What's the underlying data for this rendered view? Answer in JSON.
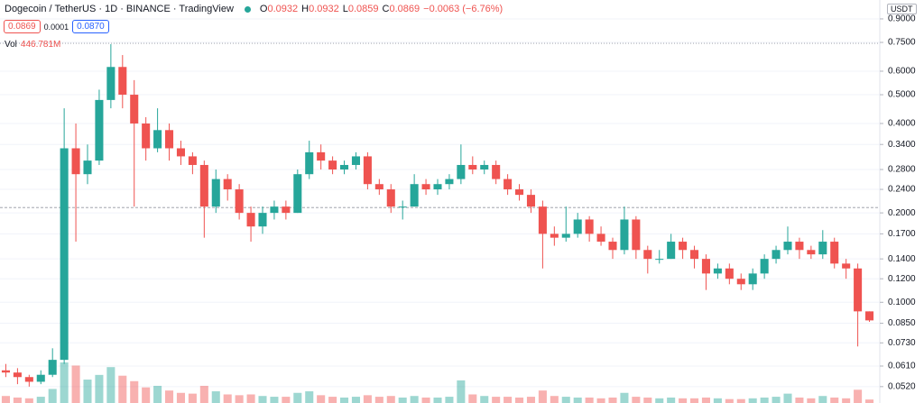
{
  "chart_data": {
    "type": "candlestick",
    "header": {
      "symbol": "Dogecoin / TetherUS · 1D · BINANCE · TradingView",
      "ohlc": [
        {
          "label": "O",
          "value": "0.0932"
        },
        {
          "label": "H",
          "value": "0.0932"
        },
        {
          "label": "L",
          "value": "0.0859"
        },
        {
          "label": "C",
          "value": "0.0869"
        }
      ],
      "change": "−0.0063 (−6.76%)",
      "bid": "0.0869",
      "spread": "0.0001",
      "ask": "0.0870",
      "volume_label": "Vol",
      "volume_value": "446.781M"
    },
    "axis_unit": "USDT",
    "log_scale": true,
    "grid": true,
    "up_color": "#26a69a",
    "down_color": "#ef5350",
    "ylim": [
      0.0458,
      1.042
    ],
    "yticks": [
      {
        "value": 0.9,
        "label": "0.9000"
      },
      {
        "value": 0.75,
        "label": "0.7500"
      },
      {
        "value": 0.6,
        "label": "0.6000"
      },
      {
        "value": 0.5,
        "label": "0.5000"
      },
      {
        "value": 0.4,
        "label": "0.4000"
      },
      {
        "value": 0.34,
        "label": "0.3400"
      },
      {
        "value": 0.28,
        "label": "0.2800"
      },
      {
        "value": 0.24,
        "label": "0.2400"
      },
      {
        "value": 0.2,
        "label": "0.2000"
      },
      {
        "value": 0.17,
        "label": "0.1700"
      },
      {
        "value": 0.14,
        "label": "0.1400"
      },
      {
        "value": 0.12,
        "label": "0.1200"
      },
      {
        "value": 0.1,
        "label": "0.1000"
      },
      {
        "value": 0.085,
        "label": "0.0850"
      },
      {
        "value": 0.073,
        "label": "0.0730"
      },
      {
        "value": 0.061,
        "label": "0.0610"
      },
      {
        "value": 0.052,
        "label": "0.0520"
      }
    ],
    "hlines": [
      0.7447,
      0.2085
    ],
    "open": [
      0.059,
      0.058,
      0.056,
      0.054,
      0.057,
      0.064,
      0.33,
      0.27,
      0.3,
      0.48,
      0.62,
      0.5,
      0.4,
      0.33,
      0.38,
      0.33,
      0.31,
      0.29,
      0.21,
      0.26,
      0.24,
      0.2,
      0.18,
      0.2,
      0.21,
      0.2,
      0.27,
      0.32,
      0.3,
      0.28,
      0.29,
      0.31,
      0.25,
      0.24,
      0.21,
      0.21,
      0.25,
      0.24,
      0.25,
      0.26,
      0.29,
      0.28,
      0.29,
      0.26,
      0.24,
      0.23,
      0.21,
      0.17,
      0.165,
      0.17,
      0.19,
      0.17,
      0.16,
      0.15,
      0.19,
      0.15,
      0.14,
      0.14,
      0.16,
      0.15,
      0.14,
      0.125,
      0.13,
      0.12,
      0.115,
      0.125,
      0.14,
      0.15,
      0.16,
      0.15,
      0.145,
      0.16,
      0.135,
      0.13,
      0.0932
    ],
    "high": [
      0.062,
      0.06,
      0.057,
      0.059,
      0.07,
      0.45,
      0.4,
      0.34,
      0.52,
      0.74,
      0.68,
      0.56,
      0.42,
      0.45,
      0.4,
      0.35,
      0.32,
      0.3,
      0.28,
      0.27,
      0.25,
      0.21,
      0.21,
      0.22,
      0.22,
      0.28,
      0.35,
      0.34,
      0.31,
      0.3,
      0.32,
      0.32,
      0.26,
      0.25,
      0.22,
      0.27,
      0.26,
      0.26,
      0.27,
      0.34,
      0.31,
      0.3,
      0.3,
      0.27,
      0.25,
      0.24,
      0.22,
      0.18,
      0.21,
      0.2,
      0.195,
      0.18,
      0.165,
      0.21,
      0.195,
      0.155,
      0.15,
      0.17,
      0.165,
      0.155,
      0.145,
      0.135,
      0.135,
      0.125,
      0.13,
      0.145,
      0.155,
      0.18,
      0.165,
      0.155,
      0.175,
      0.165,
      0.14,
      0.135,
      0.0932
    ],
    "low": [
      0.056,
      0.053,
      0.052,
      0.053,
      0.056,
      0.062,
      0.16,
      0.25,
      0.29,
      0.45,
      0.45,
      0.21,
      0.3,
      0.32,
      0.3,
      0.29,
      0.27,
      0.165,
      0.2,
      0.22,
      0.19,
      0.16,
      0.17,
      0.19,
      0.19,
      0.2,
      0.26,
      0.28,
      0.27,
      0.27,
      0.28,
      0.24,
      0.23,
      0.2,
      0.19,
      0.21,
      0.23,
      0.23,
      0.24,
      0.25,
      0.27,
      0.27,
      0.25,
      0.23,
      0.22,
      0.2,
      0.13,
      0.155,
      0.16,
      0.165,
      0.16,
      0.155,
      0.14,
      0.145,
      0.14,
      0.125,
      0.135,
      0.14,
      0.14,
      0.13,
      0.11,
      0.12,
      0.115,
      0.11,
      0.11,
      0.12,
      0.135,
      0.145,
      0.14,
      0.14,
      0.14,
      0.13,
      0.12,
      0.071,
      0.0859
    ],
    "close": [
      0.058,
      0.056,
      0.054,
      0.057,
      0.064,
      0.33,
      0.27,
      0.3,
      0.48,
      0.62,
      0.5,
      0.4,
      0.33,
      0.38,
      0.33,
      0.31,
      0.29,
      0.21,
      0.26,
      0.24,
      0.2,
      0.18,
      0.2,
      0.21,
      0.2,
      0.27,
      0.32,
      0.3,
      0.28,
      0.29,
      0.31,
      0.25,
      0.24,
      0.21,
      0.21,
      0.25,
      0.24,
      0.25,
      0.26,
      0.29,
      0.28,
      0.29,
      0.26,
      0.24,
      0.23,
      0.21,
      0.17,
      0.165,
      0.17,
      0.19,
      0.17,
      0.16,
      0.15,
      0.19,
      0.15,
      0.14,
      0.14,
      0.16,
      0.15,
      0.14,
      0.125,
      0.13,
      0.12,
      0.115,
      0.125,
      0.14,
      0.15,
      0.16,
      0.15,
      0.145,
      0.16,
      0.135,
      0.13,
      0.0932,
      0.0869
    ],
    "volume": [
      900,
      700,
      600,
      800,
      1800,
      5200,
      4800,
      3000,
      3600,
      4600,
      3500,
      2800,
      2000,
      2200,
      1600,
      1300,
      1200,
      2200,
      1500,
      1100,
      1000,
      1100,
      900,
      800,
      800,
      1300,
      1500,
      1000,
      800,
      700,
      800,
      1000,
      800,
      900,
      700,
      900,
      700,
      700,
      800,
      2900,
      1100,
      900,
      800,
      800,
      700,
      800,
      1600,
      900,
      800,
      700,
      700,
      600,
      700,
      1300,
      800,
      700,
      600,
      700,
      600,
      600,
      700,
      600,
      500,
      500,
      600,
      700,
      800,
      1200,
      700,
      600,
      900,
      700,
      600,
      1700,
      446.781
    ]
  }
}
